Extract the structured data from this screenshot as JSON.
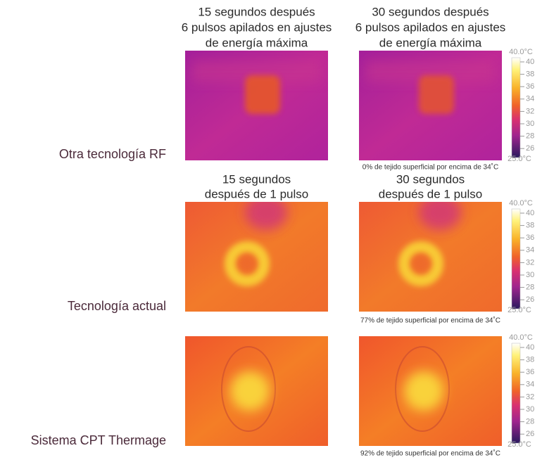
{
  "rows": [
    {
      "label": "Otra tecnología RF",
      "captions": [
        [
          "15 segundos después",
          "6 pulsos apilados en ajustes",
          "de energía máxima"
        ],
        [
          "30 segundos después",
          "6 pulsos apilados en ajustes",
          "de energía máxima"
        ]
      ],
      "note": "0% de tejido superficial por encima de 34˚C"
    },
    {
      "label": "Tecnología actual",
      "captions": [
        [
          "15 segundos",
          "después de 1 pulso"
        ],
        [
          "30 segundos",
          "después de 1 pulso"
        ]
      ],
      "note": "77% de tejido superficial por encima de 34˚C"
    },
    {
      "label": "Sistema CPT Thermage",
      "note": "92% de tejido superficial por encima de 34˚C"
    }
  ],
  "colorbar": {
    "max": {
      "value": 40,
      "label": "40.0°C"
    },
    "min": {
      "value": 25,
      "label": "25.0°C"
    },
    "ticks": [
      40,
      38,
      36,
      34,
      32,
      30,
      28,
      26
    ]
  }
}
